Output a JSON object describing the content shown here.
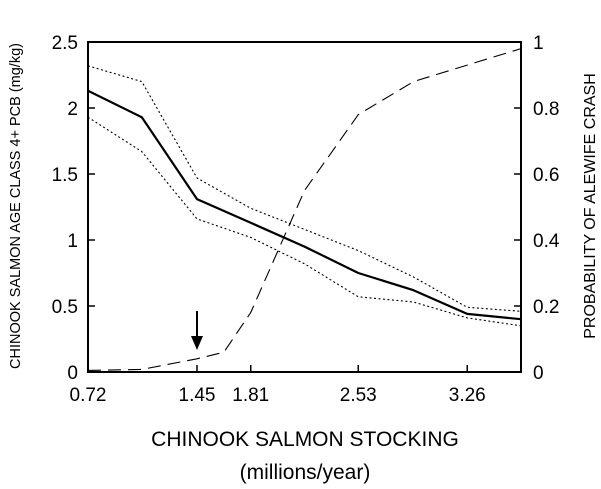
{
  "chart_data": {
    "type": "line",
    "xlabel": "CHINOOK SALMON STOCKING",
    "xlabel_line2": "(millions/year)",
    "ylabel_left": "CHINOOK SALMON AGE CLASS 4+ PCB (mg/kg)",
    "ylabel_right": "PROBABILITY OF ALEWIFE CRASH",
    "x_tick_labels": [
      "0.72",
      "1.45",
      "1.81",
      "2.53",
      "3.26"
    ],
    "x_tick_values": [
      0.72,
      1.45,
      1.81,
      2.53,
      3.26
    ],
    "xlim": [
      0.72,
      3.62
    ],
    "ylim_left": [
      0,
      2.5
    ],
    "ylim_right": [
      0,
      1
    ],
    "y_left_tick_labels": [
      "0",
      "0.5",
      "1",
      "1.5",
      "2",
      "2.5"
    ],
    "y_left_tick_values": [
      0,
      0.5,
      1,
      1.5,
      2,
      2.5
    ],
    "y_right_tick_labels": [
      "0",
      "0.2",
      "0.4",
      "0.6",
      "0.8",
      "1"
    ],
    "y_right_tick_values": [
      0,
      0.2,
      0.4,
      0.6,
      0.8,
      1
    ],
    "arrow_annotation_x": 1.45,
    "series": [
      {
        "axis": "left",
        "style": "solid",
        "x": [
          0.72,
          1.08,
          1.45,
          1.81,
          2.17,
          2.53,
          2.9,
          3.26,
          3.62
        ],
        "y": [
          2.13,
          1.93,
          1.31,
          1.13,
          0.95,
          0.75,
          0.62,
          0.44,
          0.4
        ]
      },
      {
        "axis": "left",
        "style": "dotted",
        "x": [
          0.72,
          1.08,
          1.45,
          1.81,
          2.17,
          2.53,
          2.9,
          3.26,
          3.62
        ],
        "y": [
          2.32,
          2.2,
          1.47,
          1.24,
          1.08,
          0.92,
          0.72,
          0.49,
          0.46
        ]
      },
      {
        "axis": "left",
        "style": "dotted",
        "x": [
          0.72,
          1.08,
          1.45,
          1.81,
          2.17,
          2.53,
          2.9,
          3.26,
          3.62
        ],
        "y": [
          1.93,
          1.67,
          1.16,
          1.02,
          0.82,
          0.57,
          0.53,
          0.41,
          0.35
        ]
      },
      {
        "axis": "right",
        "style": "dashed",
        "x": [
          0.72,
          1.08,
          1.45,
          1.63,
          1.81,
          2.17,
          2.53,
          2.9,
          3.26,
          3.62
        ],
        "y": [
          0.005,
          0.008,
          0.04,
          0.06,
          0.18,
          0.55,
          0.78,
          0.88,
          0.93,
          0.98
        ]
      }
    ]
  }
}
